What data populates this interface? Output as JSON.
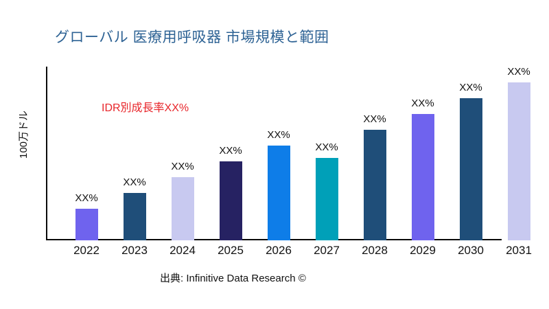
{
  "page": {
    "title": "グローバル 医療用呼吸器 市場規模と範囲",
    "title_color": "#2d6294",
    "annotation": "IDR別成長率XX%",
    "annotation_color": "#e8252a",
    "ylabel": "100万ドル",
    "source": "出典: Infinitive Data Research ©"
  },
  "chart_data": {
    "type": "bar",
    "title": "グローバル 医療用呼吸器 市場規模と範囲",
    "xlabel": "",
    "ylabel": "100万ドル",
    "categories": [
      "2022",
      "2023",
      "2024",
      "2025",
      "2026",
      "2027",
      "2028",
      "2029",
      "2030",
      "2031"
    ],
    "values": [
      20,
      30,
      40,
      50,
      60,
      52,
      70,
      80,
      90,
      100
    ],
    "values_note": "actual values masked in source image; values are relative bar heights (% of tallest bar)",
    "bar_labels": [
      "XX%",
      "XX%",
      "XX%",
      "XX%",
      "XX%",
      "XX%",
      "XX%",
      "XX%",
      "XX%",
      "XX%"
    ],
    "bar_colors": [
      "#6f63ee",
      "#1f4e79",
      "#c8c9f0",
      "#262262",
      "#0e7de8",
      "#00a0b8",
      "#1f4e79",
      "#6f63ee",
      "#1f4e79",
      "#c8c9f0"
    ],
    "ylim": [
      0,
      100
    ],
    "grid": false,
    "legend": null,
    "annotations": [
      "IDR別成長率XX%"
    ]
  }
}
